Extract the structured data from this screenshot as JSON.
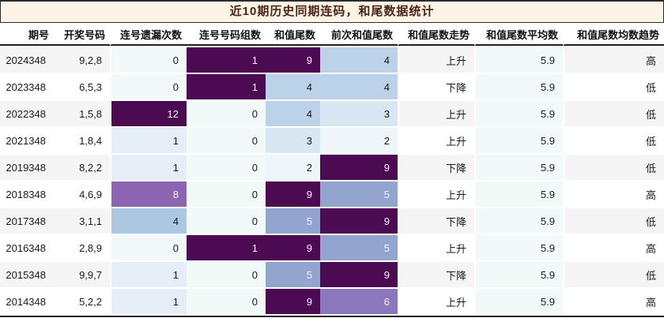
{
  "title": "近10期历史同期连码，和尾数据统计",
  "table": {
    "columns": [
      {
        "key": "period",
        "label": "期号"
      },
      {
        "key": "numbers",
        "label": "开奖号码"
      },
      {
        "key": "miss-count",
        "label": "连号遗漏次数"
      },
      {
        "key": "group-count",
        "label": "连号号码组数"
      },
      {
        "key": "sum-tail",
        "label": "和值尾数"
      },
      {
        "key": "prev-sum-tail",
        "label": "前次和值尾数"
      },
      {
        "key": "sum-tail-trend",
        "label": "和值尾数走势"
      },
      {
        "key": "sum-tail-avg",
        "label": "和值尾数平均数"
      },
      {
        "key": "sum-tail-avg-trend",
        "label": "和值尾数均数趋势"
      }
    ],
    "heat": {
      "miss-count": {
        "0": "#f2faf9",
        "1": "#e5eef7",
        "4": "#abc7e2",
        "8": "#8d64b2",
        "12": "#4c0a52"
      },
      "group-count": {
        "0": "#f2faf9",
        "1": "#4c0a52"
      },
      "sum-tail": {
        "2": "#eef6f9",
        "3": "#d9e7f3",
        "4": "#bcd2e8",
        "5": "#93a5cf",
        "6": "#8b77bb",
        "9": "#4c0a52"
      },
      "prev-sum-tail": {
        "2": "#eef6f9",
        "3": "#d9e7f3",
        "4": "#bcd2e8",
        "5": "#93a5cf",
        "6": "#8b77bb",
        "9": "#4c0a52"
      },
      "sum-tail-avg": {
        "5.9": "#f2faf9"
      }
    }
  },
  "colors": {
    "title_bg": "#fdf3e6",
    "title_text": "#4a2318",
    "row_odd_bg": "#f5f5f5",
    "row_even_bg": "#ffffff",
    "dark_line": "#1f1f1f",
    "heat_darkest": "#4c0a52",
    "heat_lightest": "#f2faf9",
    "dark_cells": [
      "#4c0a52",
      "#8d64b2",
      "#93a5cf",
      "#8b77bb"
    ],
    "light_text": "#f4f1f8"
  },
  "chart_data": {
    "type": "table",
    "title": "近10期历史同期连码，和尾数据统计",
    "columns": [
      "期号",
      "开奖号码",
      "连号遗漏次数",
      "连号号码组数",
      "和值尾数",
      "前次和值尾数",
      "和值尾数走势",
      "和值尾数平均数",
      "和值尾数均数趋势"
    ],
    "rows": [
      [
        "2024348",
        "9,2,8",
        0,
        1,
        9,
        4,
        "上升",
        5.9,
        "高"
      ],
      [
        "2023348",
        "6,5,3",
        0,
        1,
        4,
        4,
        "下降",
        5.9,
        "低"
      ],
      [
        "2022348",
        "1,5,8",
        12,
        0,
        4,
        3,
        "上升",
        5.9,
        "低"
      ],
      [
        "2021348",
        "1,8,4",
        1,
        0,
        3,
        2,
        "上升",
        5.9,
        "低"
      ],
      [
        "2019348",
        "8,2,2",
        1,
        0,
        2,
        9,
        "下降",
        5.9,
        "低"
      ],
      [
        "2018348",
        "4,6,9",
        8,
        0,
        9,
        5,
        "上升",
        5.9,
        "高"
      ],
      [
        "2017348",
        "3,1,1",
        4,
        0,
        5,
        9,
        "下降",
        5.9,
        "低"
      ],
      [
        "2016348",
        "2,8,9",
        0,
        1,
        9,
        5,
        "上升",
        5.9,
        "高"
      ],
      [
        "2015348",
        "9,9,7",
        1,
        0,
        5,
        9,
        "下降",
        5.9,
        "低"
      ],
      [
        "2014348",
        "5,2,2",
        1,
        0,
        9,
        6,
        "上升",
        5.9,
        "高"
      ]
    ],
    "heatmap_columns": [
      "连号遗漏次数",
      "连号号码组数",
      "和值尾数",
      "前次和值尾数",
      "和值尾数平均数"
    ],
    "colormap": "BuPu-like: light mint (low) -> light blue -> slate blue -> purple -> dark purple (high), normalized per column",
    "legend_position": "none",
    "grid": false
  }
}
